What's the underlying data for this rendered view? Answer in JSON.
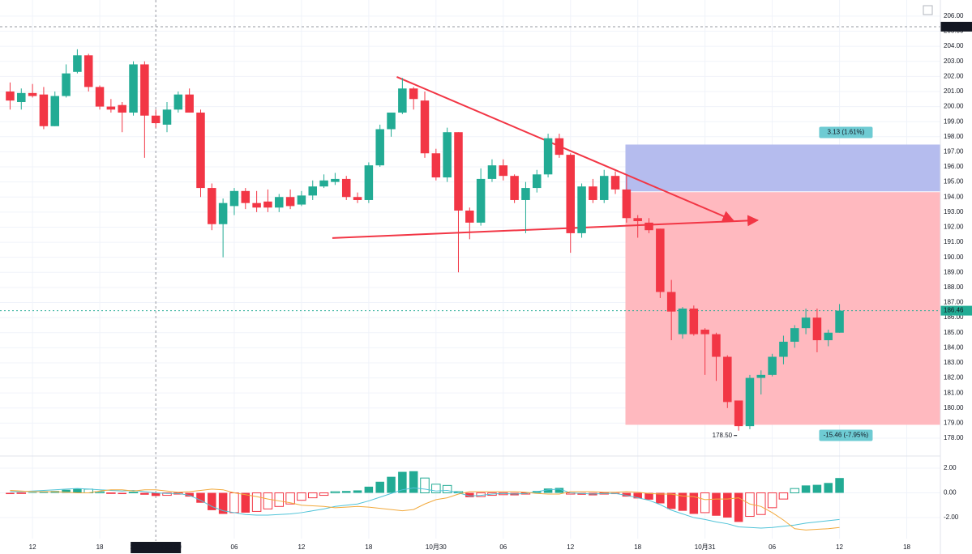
{
  "chart_data": [
    {
      "type": "candlestick",
      "xlim": [
        -0.9,
        83
      ],
      "ylim": [
        176.98,
        207.07
      ],
      "xticks": [
        {
          "value": 2,
          "label": "12"
        },
        {
          "value": 8,
          "label": "18"
        },
        {
          "value": 20,
          "label": "06"
        },
        {
          "value": 26,
          "label": "12"
        },
        {
          "value": 32,
          "label": "18"
        },
        {
          "value": 38,
          "label": "10月30"
        },
        {
          "value": 44,
          "label": "06"
        },
        {
          "value": 50,
          "label": "12"
        },
        {
          "value": 56,
          "label": "18"
        },
        {
          "value": 62,
          "label": "10月31"
        },
        {
          "value": 68,
          "label": "06"
        },
        {
          "value": 74,
          "label": "12"
        },
        {
          "value": 80,
          "label": "18"
        }
      ],
      "yticks": [
        {
          "value": 178,
          "label": "178.00"
        },
        {
          "value": 179,
          "label": "179.00"
        },
        {
          "value": 180,
          "label": "180.00"
        },
        {
          "value": 181,
          "label": "181.00"
        },
        {
          "value": 182,
          "label": "182.00"
        },
        {
          "value": 183,
          "label": "183.00"
        },
        {
          "value": 184,
          "label": "184.00"
        },
        {
          "value": 185,
          "label": "185.00"
        },
        {
          "value": 186,
          "label": "186.00"
        },
        {
          "value": 187,
          "label": "187.00"
        },
        {
          "value": 188,
          "label": "188.00"
        },
        {
          "value": 189,
          "label": "189.00"
        },
        {
          "value": 190,
          "label": "190.00"
        },
        {
          "value": 191,
          "label": "191.00"
        },
        {
          "value": 192,
          "label": "192.00"
        },
        {
          "value": 193,
          "label": "193.00"
        },
        {
          "value": 194,
          "label": "194.00"
        },
        {
          "value": 195,
          "label": "195.00"
        },
        {
          "value": 196,
          "label": "196.00"
        },
        {
          "value": 197,
          "label": "197.00"
        },
        {
          "value": 198,
          "label": "198.00"
        },
        {
          "value": 199,
          "label": "199.00"
        },
        {
          "value": 200,
          "label": "200.00"
        },
        {
          "value": 201,
          "label": "201.00"
        },
        {
          "value": 202,
          "label": "202.00"
        },
        {
          "value": 203,
          "label": "203.00"
        },
        {
          "value": 204,
          "label": "204.00"
        },
        {
          "value": 205,
          "label": "205.00"
        },
        {
          "value": 206,
          "label": "206.00"
        }
      ],
      "grid": true,
      "up_color": "#22ab94",
      "down_color": "#f23645",
      "open": [
        201.0,
        200.3,
        200.9,
        200.8,
        198.7,
        200.7,
        202.3,
        203.4,
        201.3,
        200.0,
        200.1,
        199.6,
        202.8,
        199.4,
        198.8,
        199.8,
        200.8,
        199.6,
        194.6,
        192.2,
        193.4,
        194.4,
        193.6,
        193.7,
        193.3,
        194.0,
        193.5,
        194.1,
        194.7,
        195.0,
        195.2,
        194.0,
        193.8,
        196.1,
        198.5,
        199.6,
        201.2,
        200.4,
        196.9,
        195.3,
        198.3,
        193.1,
        192.3,
        195.2,
        196.1,
        195.4,
        193.8,
        194.6,
        195.5,
        197.9,
        196.8,
        191.6,
        194.7,
        193.8,
        195.4,
        194.5,
        192.6,
        192.3,
        191.9,
        187.7,
        184.9,
        186.6,
        185.2,
        184.9,
        183.4,
        180.5,
        178.8,
        182.0,
        182.2,
        183.4,
        184.4,
        185.3,
        186.0,
        184.5,
        185.0
      ],
      "high": [
        201.6,
        201.2,
        201.5,
        201.3,
        201.0,
        202.8,
        203.8,
        203.5,
        201.4,
        200.5,
        200.3,
        203.0,
        203.0,
        199.8,
        200.3,
        201.0,
        201.2,
        199.8,
        194.9,
        193.9,
        194.6,
        194.6,
        194.4,
        194.5,
        194.2,
        194.5,
        194.4,
        195.1,
        195.5,
        195.6,
        195.4,
        194.3,
        196.3,
        198.8,
        199.6,
        201.9,
        201.3,
        201.0,
        197.2,
        198.6,
        198.3,
        193.3,
        195.9,
        196.5,
        196.5,
        195.5,
        195.0,
        195.8,
        198.2,
        198.2,
        196.9,
        194.9,
        195.2,
        195.8,
        195.7,
        195.5,
        192.8,
        192.6,
        191.9,
        188.5,
        186.7,
        186.8,
        185.3,
        185.0,
        183.5,
        180.5,
        182.2,
        182.5,
        183.6,
        184.8,
        185.5,
        186.6,
        186.6,
        185.2,
        186.9
      ],
      "low": [
        199.8,
        199.8,
        200.6,
        198.5,
        198.7,
        200.6,
        202.2,
        201.0,
        199.8,
        199.6,
        198.3,
        199.4,
        196.6,
        198.6,
        198.3,
        199.6,
        199.6,
        194.0,
        191.8,
        190.0,
        192.8,
        193.2,
        193.0,
        193.0,
        193.0,
        193.2,
        193.4,
        193.8,
        194.6,
        194.8,
        193.8,
        193.6,
        193.6,
        196.0,
        198.0,
        199.5,
        199.8,
        196.6,
        195.1,
        195.0,
        189.0,
        191.2,
        192.1,
        195.0,
        195.1,
        193.6,
        191.6,
        194.3,
        195.3,
        196.6,
        190.3,
        191.3,
        193.6,
        193.6,
        194.2,
        192.3,
        191.3,
        191.6,
        187.3,
        184.5,
        184.6,
        184.8,
        182.2,
        181.8,
        180.0,
        178.5,
        178.6,
        180.9,
        182.1,
        182.9,
        184.0,
        184.9,
        183.7,
        184.1,
        185.0
      ],
      "close": [
        200.4,
        200.9,
        200.7,
        198.7,
        200.7,
        202.2,
        203.4,
        201.3,
        200.0,
        199.8,
        199.6,
        202.8,
        199.4,
        198.9,
        199.8,
        200.8,
        199.6,
        194.6,
        192.2,
        193.6,
        194.4,
        193.6,
        193.3,
        193.3,
        194.0,
        193.4,
        194.1,
        194.7,
        195.1,
        195.2,
        194.0,
        193.8,
        196.1,
        198.5,
        199.6,
        201.2,
        200.5,
        196.9,
        195.3,
        198.3,
        193.1,
        192.3,
        195.2,
        196.1,
        195.4,
        193.8,
        194.6,
        195.5,
        197.9,
        196.8,
        191.6,
        194.7,
        193.8,
        195.4,
        194.5,
        192.6,
        192.4,
        191.8,
        187.7,
        186.4,
        186.6,
        184.9,
        184.9,
        183.4,
        180.4,
        178.8,
        182.0,
        182.2,
        183.4,
        184.4,
        185.3,
        186.0,
        184.5,
        185.0,
        186.46
      ],
      "crosshair": {
        "x": 13,
        "x_label": "2025-10-28 23:00",
        "y": 205.3,
        "y_label": "205.30"
      },
      "last_price": {
        "value": 186.46,
        "label": "186.46",
        "color": "#22ab94"
      },
      "low_marker": {
        "index": 65,
        "value": 178.5,
        "label": "178.50"
      },
      "trend_lines": [
        {
          "points": [
            [
              34.5,
              201.97
            ],
            [
              64.5,
              192.46
            ]
          ],
          "color": "#f23645"
        },
        {
          "points": [
            [
              28.75,
              191.28
            ],
            [
              66.7,
              192.46
            ]
          ],
          "color": "#f23645"
        }
      ],
      "position": {
        "x_start": 54.9,
        "entry": 194.35,
        "target": 197.48,
        "stop": 178.89,
        "target_label": "3.13 (1.61%)",
        "stop_label": "-15.46 (-7.95%)",
        "target_color": "#b5bcee",
        "stop_color": "#ffb9bf",
        "label_color": "#6ecbd3"
      }
    },
    {
      "type": "macd",
      "ylim": [
        -3.7,
        2.85
      ],
      "yticks": [
        {
          "value": 2,
          "label": "2.00"
        },
        {
          "value": 0,
          "label": "0.00"
        },
        {
          "value": -2,
          "label": "-2.00"
        }
      ],
      "up_color": "#22ab94",
      "down_color": "#f23645",
      "histogram": [
        -0.1,
        -0.05,
        0.05,
        0.1,
        0.15,
        0.25,
        0.35,
        0.3,
        0.1,
        -0.05,
        -0.1,
        0.05,
        -0.15,
        -0.25,
        -0.2,
        -0.1,
        -0.3,
        -0.8,
        -1.4,
        -1.7,
        -1.6,
        -1.6,
        -1.5,
        -1.3,
        -1.1,
        -0.9,
        -0.6,
        -0.4,
        -0.2,
        0.1,
        0.15,
        0.2,
        0.5,
        0.9,
        1.3,
        1.7,
        1.75,
        1.2,
        0.7,
        0.6,
        0.1,
        -0.35,
        -0.3,
        -0.2,
        -0.15,
        -0.2,
        -0.1,
        0.15,
        0.35,
        0.4,
        -0.1,
        -0.15,
        -0.2,
        -0.1,
        -0.1,
        -0.3,
        -0.45,
        -0.55,
        -0.85,
        -1.3,
        -1.45,
        -1.7,
        -1.6,
        -1.85,
        -2.0,
        -2.35,
        -1.9,
        -1.75,
        -1.2,
        -0.5,
        0.35,
        0.6,
        0.65,
        0.8,
        1.2
      ],
      "series": [
        {
          "color": "#4fc3d8",
          "values": [
            0.1,
            0.1,
            0.15,
            0.2,
            0.25,
            0.3,
            0.35,
            0.3,
            0.25,
            0.2,
            0.15,
            0.2,
            0.1,
            0.0,
            -0.05,
            -0.05,
            -0.2,
            -0.6,
            -1.1,
            -1.45,
            -1.6,
            -1.75,
            -1.8,
            -1.8,
            -1.75,
            -1.7,
            -1.6,
            -1.45,
            -1.3,
            -1.1,
            -1.0,
            -0.9,
            -0.65,
            -0.35,
            -0.05,
            0.25,
            0.4,
            0.3,
            0.15,
            0.2,
            0.0,
            -0.25,
            -0.2,
            -0.1,
            -0.05,
            -0.1,
            -0.05,
            0.1,
            0.25,
            0.3,
            0.0,
            -0.05,
            -0.1,
            -0.05,
            -0.05,
            -0.2,
            -0.4,
            -0.6,
            -0.95,
            -1.4,
            -1.7,
            -2.0,
            -2.15,
            -2.35,
            -2.5,
            -2.75,
            -2.8,
            -2.85,
            -2.8,
            -2.7,
            -2.6,
            -2.45,
            -2.35,
            -2.25,
            -2.15
          ]
        },
        {
          "color": "#f2a93b",
          "values": [
            0.2,
            0.15,
            0.1,
            0.1,
            0.1,
            0.05,
            0.0,
            0.0,
            0.15,
            0.25,
            0.25,
            0.15,
            0.25,
            0.25,
            0.15,
            0.05,
            0.1,
            0.2,
            0.3,
            0.25,
            0.0,
            -0.15,
            -0.3,
            -0.5,
            -0.65,
            -0.8,
            -1.0,
            -1.05,
            -1.1,
            -1.2,
            -1.15,
            -1.1,
            -1.15,
            -1.25,
            -1.35,
            -1.45,
            -1.35,
            -0.9,
            -0.55,
            -0.4,
            -0.1,
            0.1,
            0.1,
            0.1,
            0.1,
            0.1,
            0.05,
            -0.05,
            -0.1,
            -0.1,
            0.1,
            0.1,
            0.1,
            0.05,
            0.05,
            0.1,
            0.05,
            -0.05,
            -0.1,
            -0.1,
            -0.25,
            -0.3,
            -0.55,
            -0.5,
            -0.5,
            -0.4,
            -0.9,
            -1.1,
            -1.6,
            -2.2,
            -2.9,
            -3.0,
            -2.95,
            -2.9,
            -2.8
          ]
        }
      ]
    }
  ]
}
